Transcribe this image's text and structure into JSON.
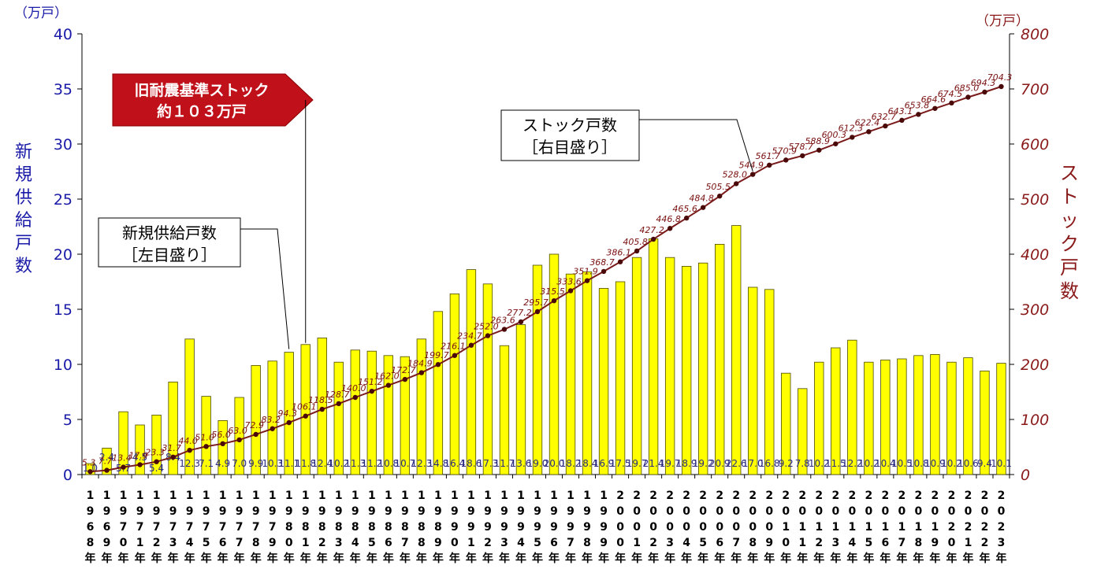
{
  "chart_data": {
    "type": "bar+line",
    "left_axis": {
      "unit": "（万戸）",
      "title": "新規供給戸数",
      "range": [
        0,
        40
      ],
      "ticks": [
        0,
        5,
        10,
        15,
        20,
        25,
        30,
        35,
        40
      ]
    },
    "right_axis": {
      "unit": "（万戸）",
      "title": "ストック戸数",
      "range": [
        0,
        800
      ],
      "ticks": [
        0,
        100,
        200,
        300,
        400,
        500,
        600,
        700,
        800
      ]
    },
    "x": [
      "1968年",
      "1969年",
      "1970年",
      "1971年",
      "1972年",
      "1973年",
      "1974年",
      "1975年",
      "1976年",
      "1977年",
      "1978年",
      "1979年",
      "1980年",
      "1981年",
      "1982年",
      "1983年",
      "1984年",
      "1985年",
      "1986年",
      "1987年",
      "1988年",
      "1989年",
      "1990年",
      "1991年",
      "1992年",
      "1993年",
      "1994年",
      "1995年",
      "1996年",
      "1997年",
      "1998年",
      "1999年",
      "2000年",
      "2001年",
      "2002年",
      "2003年",
      "2004年",
      "2005年",
      "2006年",
      "2007年",
      "2008年",
      "2009年",
      "2010年",
      "2011年",
      "2012年",
      "2013年",
      "2014年",
      "2015年",
      "2016年",
      "2017年",
      "2018年",
      "2019年",
      "2020年",
      "2021年",
      "2022年",
      "2023年"
    ],
    "series": [
      {
        "name": "新規供給戸数",
        "axis": "left",
        "values": [
          1.0,
          2.4,
          5.7,
          4.5,
          5.4,
          8.4,
          12.3,
          7.1,
          4.9,
          7.0,
          9.9,
          10.3,
          11.1,
          11.8,
          12.4,
          10.2,
          11.3,
          11.2,
          10.8,
          10.7,
          12.3,
          14.8,
          16.4,
          18.6,
          17.3,
          11.7,
          13.6,
          19.0,
          20.0,
          18.2,
          18.4,
          16.9,
          17.5,
          19.7,
          21.4,
          19.7,
          18.9,
          19.2,
          20.9,
          22.6,
          17.0,
          16.8,
          9.2,
          7.8,
          10.2,
          11.5,
          12.2,
          10.2,
          10.4,
          10.5,
          10.8,
          10.9,
          10.2,
          10.6,
          9.4,
          10.1
        ],
        "labels": [
          "1.0",
          "2.4",
          "5.7",
          "4.5",
          "5.4",
          "8.4",
          "12.3",
          "7.1",
          "4.9",
          "7.0",
          "9.9",
          "10.3",
          "11.1",
          "11.8",
          "12.4",
          "10.2",
          "11.3",
          "11.2",
          "10.8",
          "10.7",
          "12.3",
          "14.8",
          "16.4",
          "18.6",
          "17.3",
          "11.7",
          "13.6",
          "19.0",
          "20.0",
          "18.2",
          "18.4",
          "16.9",
          "17.5",
          "19.7",
          "21.4",
          "19.7",
          "18.9",
          "19.2",
          "20.9",
          "22.6",
          "17.0",
          "16.8",
          "9.2",
          "7.8",
          "10.2",
          "11.5",
          "12.2",
          "10.2",
          "10.4",
          "10.5",
          "10.8",
          "10.9",
          "10.2",
          "10.6",
          "9.4",
          "10.1"
        ]
      },
      {
        "name": "ストック戸数",
        "axis": "right",
        "values": [
          5.3,
          7.7,
          13.4,
          17.9,
          23.3,
          31.7,
          44.0,
          51.0,
          56.0,
          63.0,
          72.9,
          83.2,
          94.3,
          106.1,
          118.5,
          128.7,
          140.0,
          151.2,
          162.0,
          172.7,
          184.9,
          199.7,
          216.1,
          234.7,
          252.0,
          263.6,
          277.2,
          295.7,
          315.5,
          333.6,
          351.9,
          368.7,
          386.1,
          405.8,
          427.2,
          446.8,
          465.6,
          484.8,
          505.5,
          528.0,
          544.9,
          561.7,
          570.9,
          578.7,
          588.9,
          600.3,
          612.3,
          622.4,
          632.7,
          643.1,
          653.8,
          664.6,
          674.5,
          685.0,
          694.3,
          704.3
        ],
        "labels": [
          "5.3",
          "7.7",
          "13.4",
          "17.9",
          "23.3",
          "31.7",
          "44.0",
          "51.0",
          "56.0",
          "63.0",
          "72.9",
          "83.2",
          "94.3",
          "106.1",
          "118.5",
          "128.7",
          "140.0",
          "151.2",
          "162.0",
          "172.7",
          "184.9",
          "199.7",
          "216.1",
          "234.7",
          "252.0",
          "263.6",
          "277.2",
          "295.7",
          "315.5",
          "333.6",
          "351.9",
          "368.7",
          "386.1",
          "405.8",
          "427.2",
          "446.8",
          "465.6",
          "484.8",
          "505.5",
          "528.0",
          "544.9",
          "561.7",
          "570.9",
          "578.7",
          "588.9",
          "600.3",
          "612.3",
          "622.4",
          "632.7",
          "643.1",
          "653.8",
          "664.6",
          "674.5",
          "685.0",
          "694.3",
          "704.3"
        ]
      }
    ],
    "annotations": {
      "banner": {
        "line1": "旧耐震基準ストック",
        "line2": "約１０３万戸",
        "points_to": "1981年"
      },
      "callout_left": {
        "line1": "新規供給戸数",
        "line2": "［左目盛り］",
        "points_to": "1981年"
      },
      "callout_right": {
        "line1": "ストック戸数",
        "line2": "［右目盛り］",
        "points_to": "2008年"
      }
    },
    "colors": {
      "bar_fill": "#ffff00",
      "bar_stroke": "#4a4a00",
      "line": "#7a1a1a",
      "marker": "#4a0a0a",
      "banner": "#c0101a",
      "left_axis_text": "#1a1aa8",
      "right_axis_text": "#8a1a1a"
    },
    "legend": "none",
    "grid": false
  }
}
